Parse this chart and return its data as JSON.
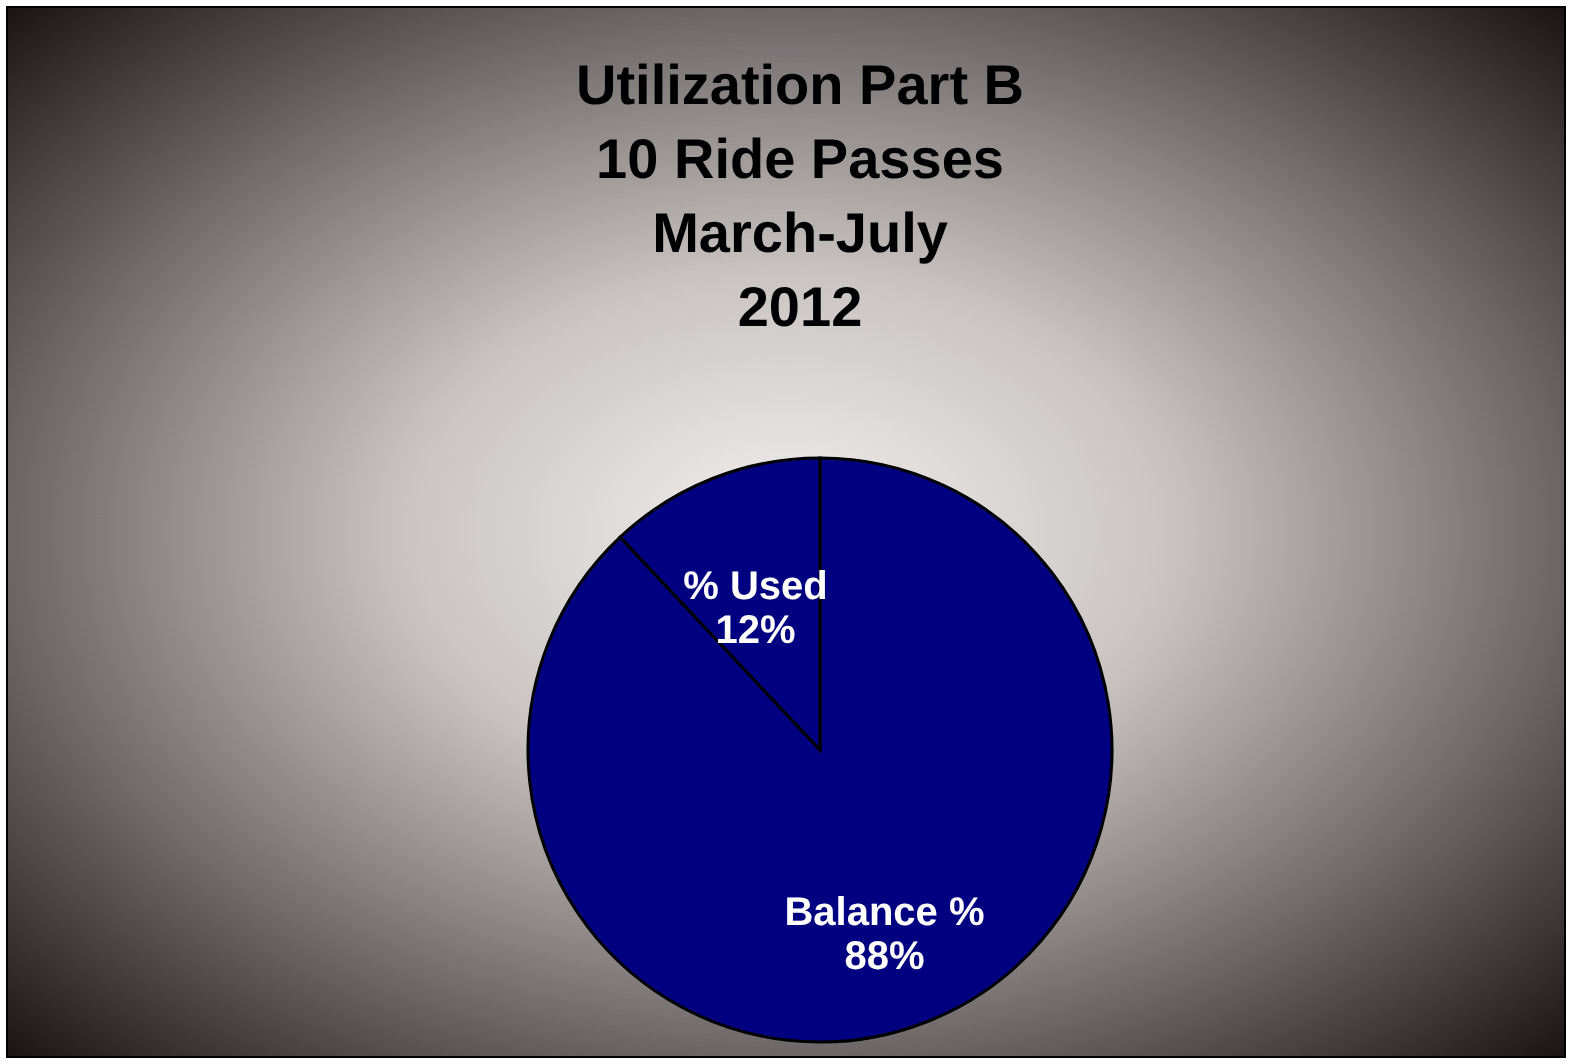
{
  "chart_data": {
    "type": "pie",
    "title": "Utilization Part B\n10 Ride Passes\nMarch-July\n2012",
    "categories": [
      "Balance %",
      "% Used"
    ],
    "values": [
      88,
      12
    ],
    "colors": [
      "#000080",
      "#000080"
    ],
    "value_labels": [
      "88%",
      "12%"
    ]
  }
}
